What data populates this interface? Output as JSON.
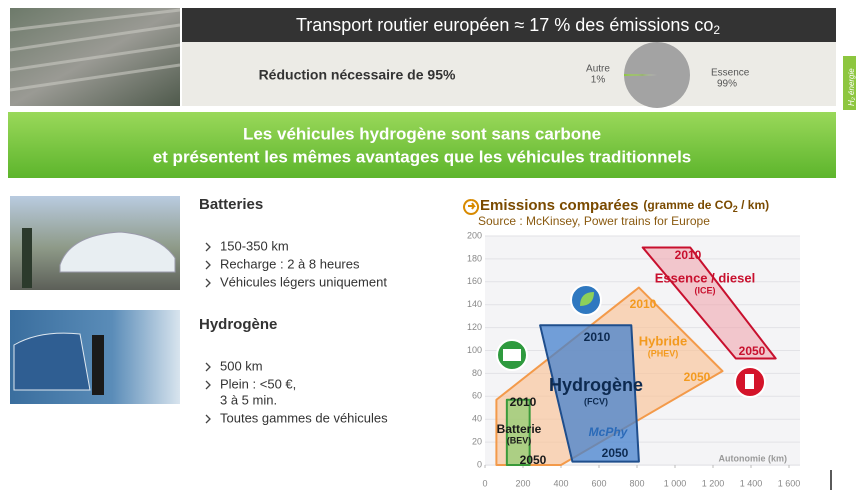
{
  "header": {
    "title": "Transport routier européen ≈ 17 % des émissions co",
    "title_sub": "2",
    "reduction": "Réduction nécessaire de 95%",
    "side_tab": "H₂ énergie"
  },
  "pie": {
    "type": "pie",
    "categories": [
      "Autre",
      "Essence"
    ],
    "values": [
      1,
      99
    ],
    "value_labels": [
      "1%",
      "99%"
    ],
    "colors": [
      "#8dc63f",
      "#a3a3a3"
    ]
  },
  "banner": {
    "lines": [
      "Les véhicules hydrogène sont sans carbone",
      "et présentent les mêmes avantages que les véhicules traditionnels"
    ]
  },
  "batteries": {
    "title": "Batteries",
    "items": [
      [
        "150-350 km"
      ],
      [
        "Recharge : 2 à 8 heures"
      ],
      [
        "Véhicules légers uniquement"
      ]
    ]
  },
  "hydrogen": {
    "title": "Hydrogène",
    "items": [
      [
        "500 km"
      ],
      [
        "Plein : <50 €,",
        "3 à 5 min."
      ],
      [
        "Toutes gammes de véhicules"
      ]
    ]
  },
  "chart_data": {
    "type": "region",
    "title": "Emissions comparées",
    "unit": "(gramme de CO",
    "unit_sub": "2",
    "unit_end": " / km)",
    "source": "Source : McKinsey, Power trains for Europe",
    "xlabel": "Autonomie (km)",
    "logo": "McPhy",
    "xlim": [
      0,
      1600
    ],
    "xticks": [
      0,
      200,
      400,
      600,
      800,
      {
        "value": 1000,
        "label": "1 000"
      },
      {
        "value": 1200,
        "label": "1 200"
      },
      {
        "value": 1400,
        "label": "1 400"
      },
      {
        "value": 1600,
        "label": "1 600"
      }
    ],
    "ylim": [
      0,
      200
    ],
    "yticks": [
      0,
      20,
      40,
      60,
      80,
      100,
      120,
      140,
      160,
      180,
      200
    ],
    "regions": [
      {
        "name": "Hybride",
        "sublabel": "(PHEV)",
        "years": [
          "2010",
          "2050"
        ],
        "color": "#f39a4a",
        "x": [
          60,
          810,
          1250,
          400,
          60
        ],
        "y": [
          57,
          155,
          82,
          0,
          0
        ]
      },
      {
        "name": "Essence / diesel",
        "sublabel": "(ICE)",
        "years": [
          "2010",
          "2050"
        ],
        "color": "#c8102e",
        "x": [
          830,
          1080,
          1530,
          1320
        ],
        "y": [
          190,
          190,
          93,
          93
        ]
      },
      {
        "name": "Batterie",
        "sublabel": "(BEV)",
        "years": [
          "2010",
          "2050"
        ],
        "color": "#3a9a3a",
        "x": [
          115,
          115,
          235,
          235
        ],
        "y": [
          0,
          57,
          57,
          0
        ]
      },
      {
        "name": "Hydrogène",
        "sublabel": "(FCV)",
        "years": [
          "2010",
          "2050"
        ],
        "color": "#1f4e8c",
        "x": [
          290,
          770,
          810,
          460
        ],
        "y": [
          122,
          122,
          3,
          3
        ]
      }
    ]
  }
}
